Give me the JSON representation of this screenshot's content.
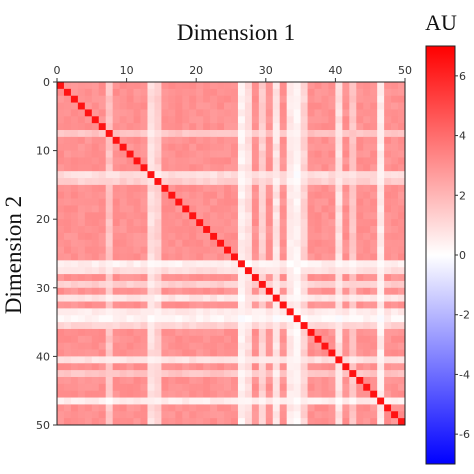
{
  "chart_data": {
    "type": "heatmap",
    "title": "Dimension 1",
    "xlabel": "Dimension 1",
    "ylabel": "Dimension 2",
    "colorbar_label": "AU",
    "size": 50,
    "x_ticks": [
      "0",
      "10",
      "20",
      "30",
      "40",
      "50"
    ],
    "y_ticks": [
      "0",
      "10",
      "20",
      "30",
      "40",
      "50"
    ],
    "colorbar_ticks": [
      "6",
      "4",
      "2",
      "0",
      "-2",
      "-4",
      "-6"
    ],
    "color_range": [
      -7,
      7
    ],
    "colormap": "bwr",
    "diagonal_value": 6.5,
    "base_value": 3.0,
    "light_bands": [
      {
        "index": 7,
        "value": 1.6
      },
      {
        "index": 13,
        "value": 0.9
      },
      {
        "index": 14,
        "value": 1.3
      },
      {
        "index": 26,
        "value": 0.4
      },
      {
        "index": 27,
        "value": 0.9
      },
      {
        "index": 29,
        "value": 1.3
      },
      {
        "index": 31,
        "value": 0.7
      },
      {
        "index": 33,
        "value": 0.6
      },
      {
        "index": 34,
        "value": 0.3
      },
      {
        "index": 35,
        "value": 1.2
      },
      {
        "index": 40,
        "value": 0.8
      },
      {
        "index": 42,
        "value": 1.6
      },
      {
        "index": 46,
        "value": 0.5
      }
    ]
  }
}
